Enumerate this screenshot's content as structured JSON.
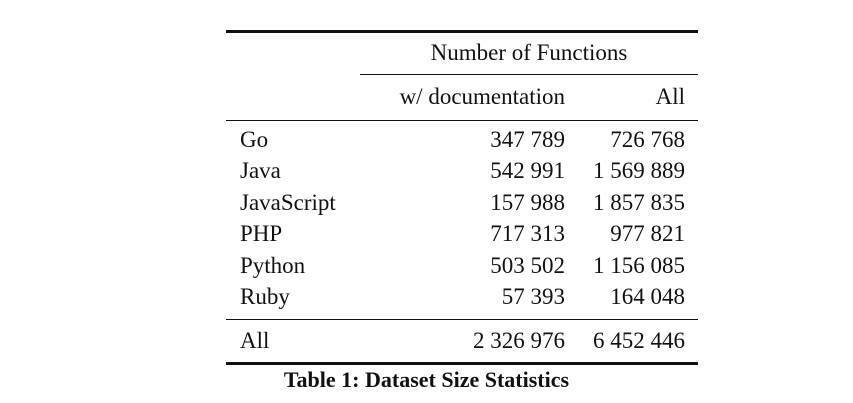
{
  "table": {
    "group_header": "Number of Functions",
    "col_with_doc": "w/ documentation",
    "col_all": "All",
    "rows": [
      {
        "language": "Go",
        "with_doc": "347 789",
        "all": "726 768"
      },
      {
        "language": "Java",
        "with_doc": "542 991",
        "all": "1 569 889"
      },
      {
        "language": "JavaScript",
        "with_doc": "157 988",
        "all": "1 857 835"
      },
      {
        "language": "PHP",
        "with_doc": "717 313",
        "all": "977 821"
      },
      {
        "language": "Python",
        "with_doc": "503 502",
        "all": "1 156 085"
      },
      {
        "language": "Ruby",
        "with_doc": "57 393",
        "all": "164 048"
      }
    ],
    "total": {
      "label": "All",
      "with_doc": "2 326 976",
      "all": "6 452 446"
    }
  },
  "caption": "Table 1: Dataset Size Statistics"
}
